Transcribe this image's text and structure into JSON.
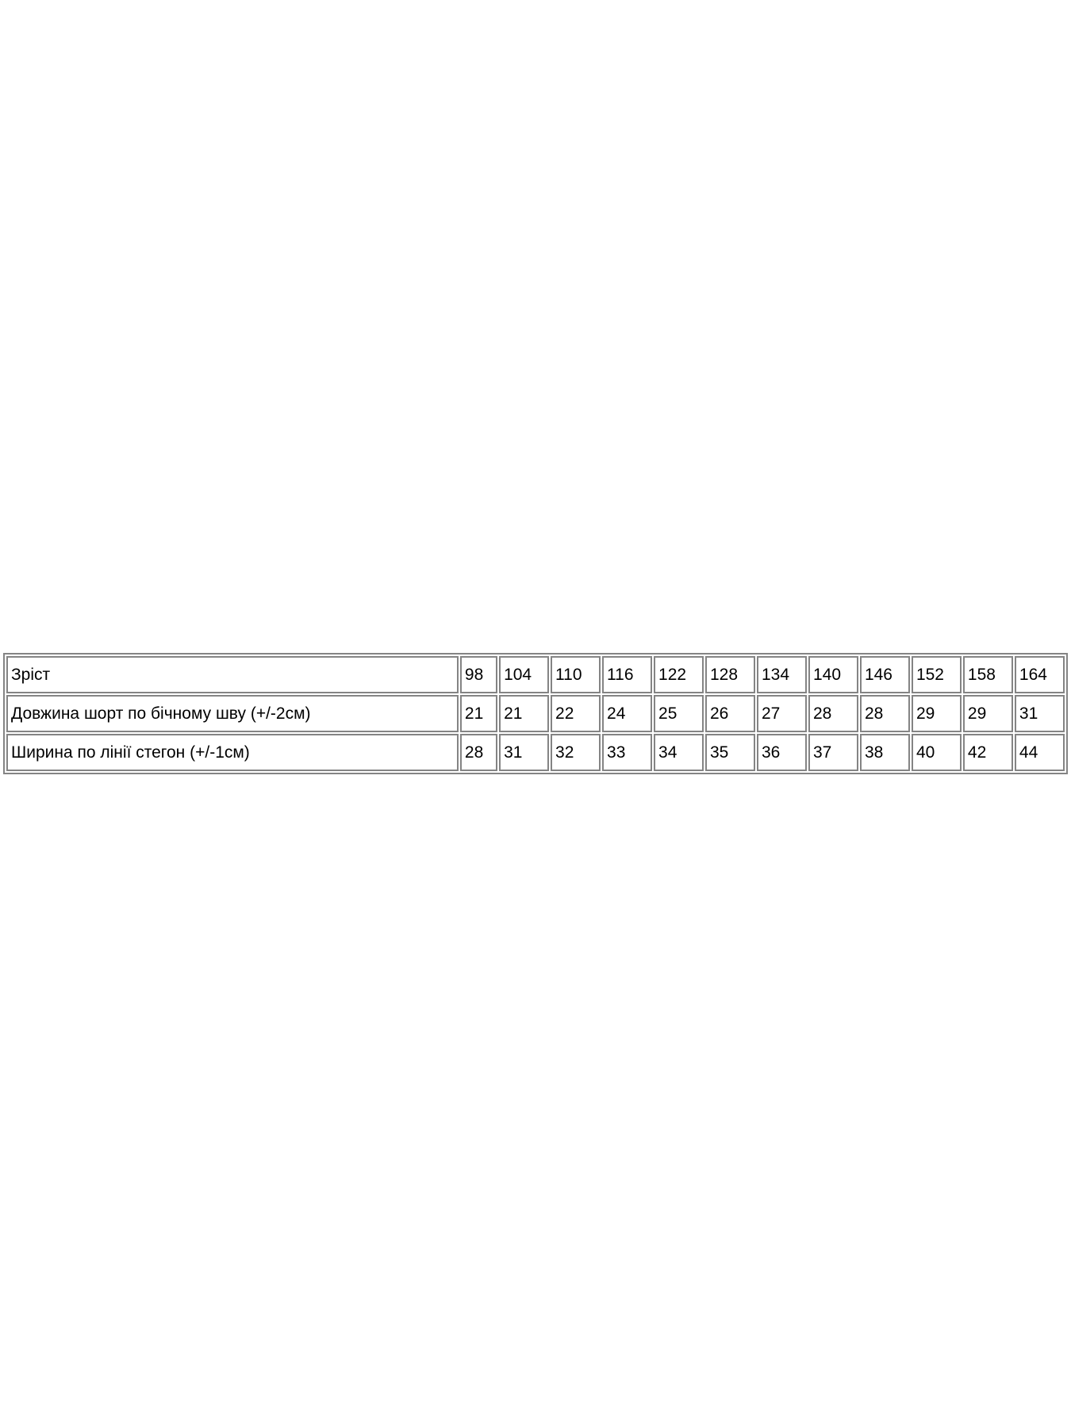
{
  "page": {
    "background_color": "#ffffff",
    "text_color": "#000000",
    "table_border_color": "#848484"
  },
  "size_chart": {
    "rows": [
      {
        "label": "Зріст",
        "values": [
          "98",
          "104",
          "110",
          "116",
          "122",
          "128",
          "134",
          "140",
          "146",
          "152",
          "158",
          "164"
        ]
      },
      {
        "label": "Довжина шорт по бічному шву (+/-2см)",
        "values": [
          "21",
          "21",
          "22",
          "24",
          "25",
          "26",
          "27",
          "28",
          "28",
          "29",
          "29",
          "31"
        ]
      },
      {
        "label": "Ширина по лінії стегон (+/-1см)",
        "values": [
          "28",
          "31",
          "32",
          "33",
          "34",
          "35",
          "36",
          "37",
          "38",
          "40",
          "42",
          "44"
        ]
      }
    ]
  }
}
